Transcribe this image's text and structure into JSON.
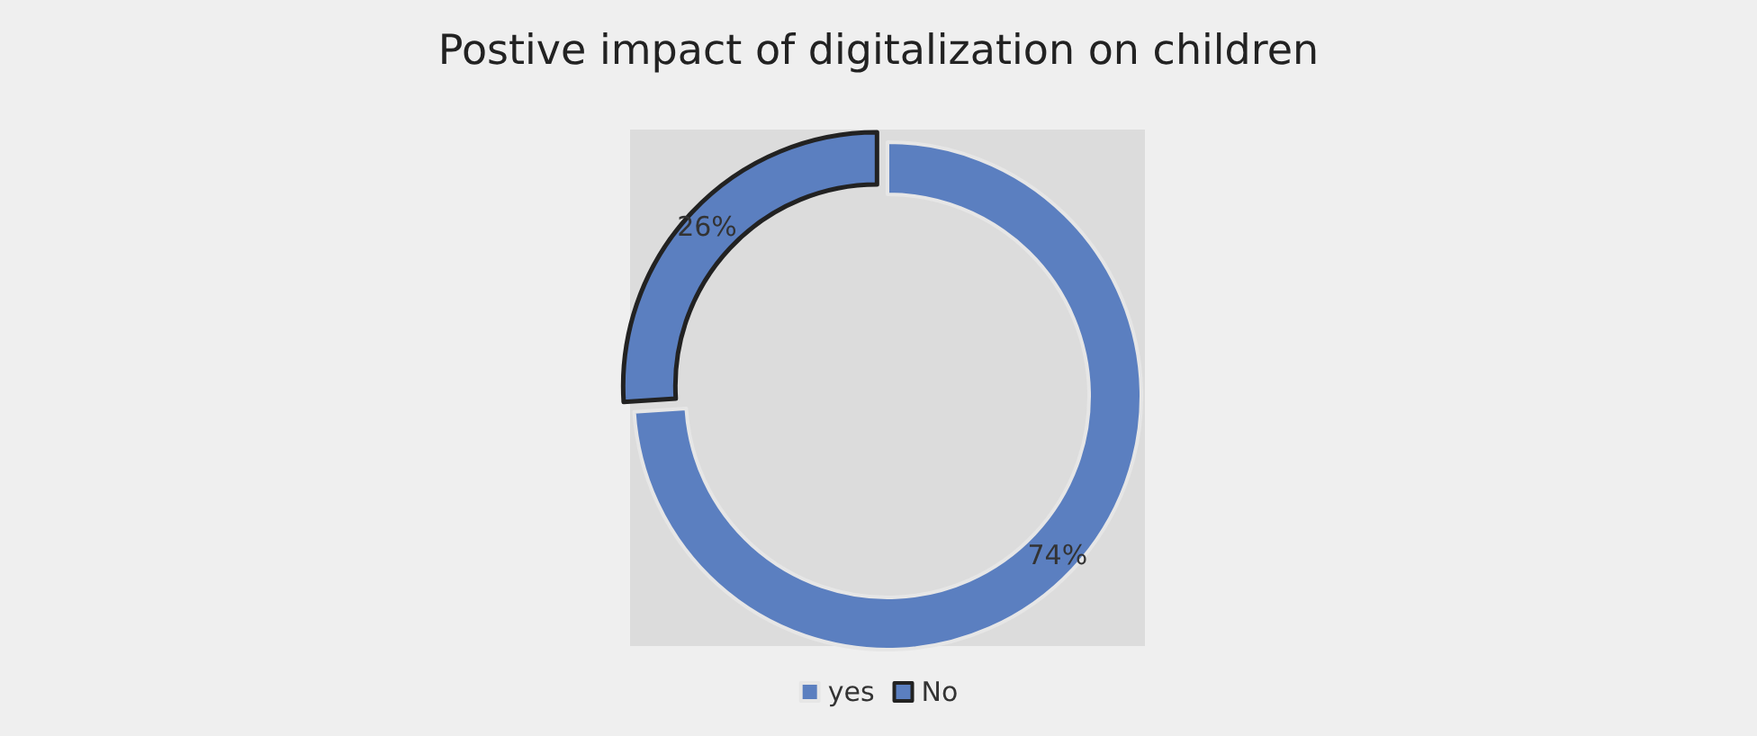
{
  "chart_data": {
    "type": "donut",
    "title": "Postive impact of digitalization on children",
    "categories": [
      "yes",
      "No"
    ],
    "values": [
      74,
      26
    ],
    "colors": [
      "#5b7fc0",
      "#5b7fc0"
    ],
    "value_labels": [
      "74%",
      "26%"
    ],
    "legend": "bottom"
  }
}
